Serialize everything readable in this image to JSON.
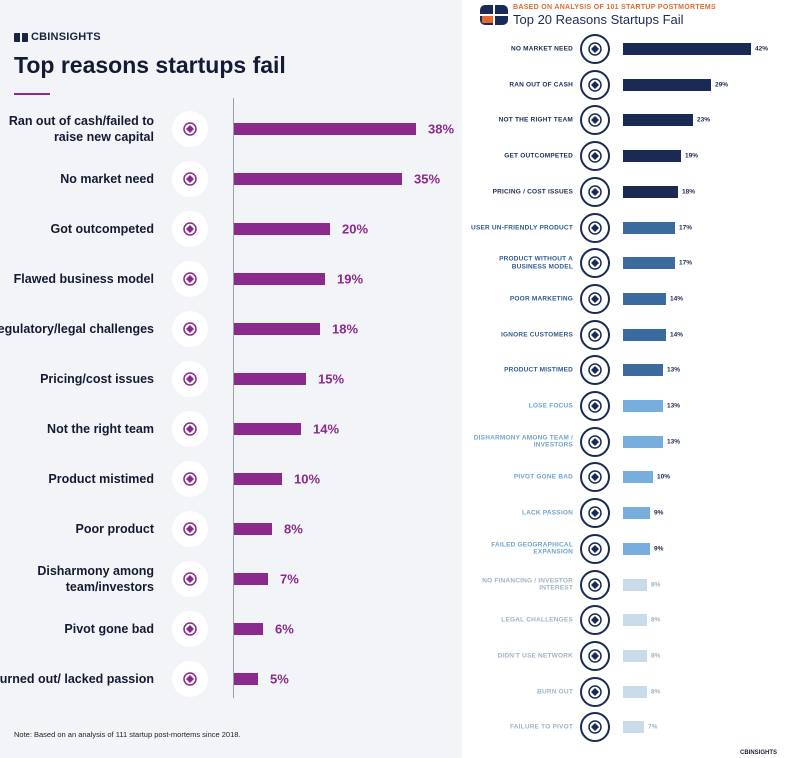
{
  "left": {
    "logo": "CBINSIGHTS",
    "title": "Top reasons startups fail",
    "note": "Note: Based on an analysis of 111 startup post-mortems since 2018.",
    "accent": "#8a2a8c"
  },
  "right": {
    "kicker": "BASED ON ANALYSIS OF 101 STARTUP POSTMORTEMS",
    "title": "Top 20 Reasons Startups Fail",
    "footer": "CBINSIGHTS",
    "colors": {
      "dark": "#1b2a55",
      "mid": "#3b6a9e",
      "light": "#77aede",
      "pale": "#c9dbe8"
    }
  },
  "chart_data": [
    {
      "type": "bar",
      "title": "Top reasons startups fail",
      "orientation": "horizontal",
      "categories": [
        "Ran out of cash/failed to raise new capital",
        "No market need",
        "Got outcompeted",
        "Flawed business model",
        "Regulatory/legal challenges",
        "Pricing/cost issues",
        "Not the right team",
        "Product mistimed",
        "Poor product",
        "Disharmony among team/investors",
        "Pivot gone bad",
        "Burned out/ lacked passion"
      ],
      "values": [
        38,
        35,
        20,
        19,
        18,
        15,
        14,
        10,
        8,
        7,
        6,
        5
      ],
      "labels": [
        "38%",
        "35%",
        "20%",
        "19%",
        "18%",
        "15%",
        "14%",
        "10%",
        "8%",
        "7%",
        "6%",
        "5%"
      ],
      "icons": [
        "piggy-bank-hammer-icon",
        "puzzle-piece-icon",
        "running-shoe-icon",
        "house-of-cards-icon",
        "gavel-icon",
        "coin-stack-icon",
        "team-people-icon",
        "alarm-clock-icon",
        "star-rating-icon",
        "upset-person-icon",
        "broken-pencil-icon",
        "sleep-zz-icon"
      ],
      "unit": "%"
    },
    {
      "type": "bar",
      "title": "Top 20 Reasons Startups Fail",
      "orientation": "horizontal",
      "categories": [
        "NO MARKET NEED",
        "RAN OUT OF CASH",
        "NOT THE RIGHT TEAM",
        "GET OUTCOMPETED",
        "PRICING / COST ISSUES",
        "USER UN-FRIENDLY PRODUCT",
        "PRODUCT WITHOUT A BUSINESS MODEL",
        "POOR MARKETING",
        "IGNORE CUSTOMERS",
        "PRODUCT MISTIMED",
        "LOSE FOCUS",
        "DISHARMONY AMONG TEAM / INVESTORS",
        "PIVOT GONE BAD",
        "LACK PASSION",
        "FAILED GEOGRAPHICAL EXPANSION",
        "NO FINANCING / INVESTOR INTEREST",
        "LEGAL CHALLENGES",
        "DIDN'T USE NETWORK",
        "BURN OUT",
        "FAILURE TO PIVOT"
      ],
      "values": [
        42,
        29,
        23,
        19,
        18,
        17,
        17,
        14,
        14,
        13,
        13,
        13,
        10,
        9,
        9,
        8,
        8,
        8,
        8,
        7
      ],
      "labels": [
        "42%",
        "29%",
        "23%",
        "19%",
        "18%",
        "17%",
        "17%",
        "14%",
        "14%",
        "13%",
        "13%",
        "13%",
        "10%",
        "9%",
        "9%",
        "8%",
        "8%",
        "8%",
        "8%",
        "7%"
      ],
      "tiers": [
        "dark",
        "dark",
        "dark",
        "dark",
        "dark",
        "mid",
        "mid",
        "mid",
        "mid",
        "mid",
        "light",
        "light",
        "light",
        "light",
        "light",
        "pale",
        "pale",
        "pale",
        "pale",
        "pale"
      ],
      "icons": [
        "puzzle-icon",
        "cash-register-icon",
        "team-globe-icon",
        "podium-icon",
        "dollar-coins-icon",
        "thumbs-down-icon",
        "wheel-icon",
        "megaphone-icon",
        "customer-icon",
        "snowflake-icon",
        "scatter-arrows-icon",
        "scissors-icon",
        "pencil-icon",
        "zz-icon",
        "location-pin-icon",
        "hand-money-icon",
        "legal-hands-icon",
        "network-icon",
        "fuel-pump-icon",
        "ship-icon"
      ],
      "unit": "%"
    }
  ]
}
